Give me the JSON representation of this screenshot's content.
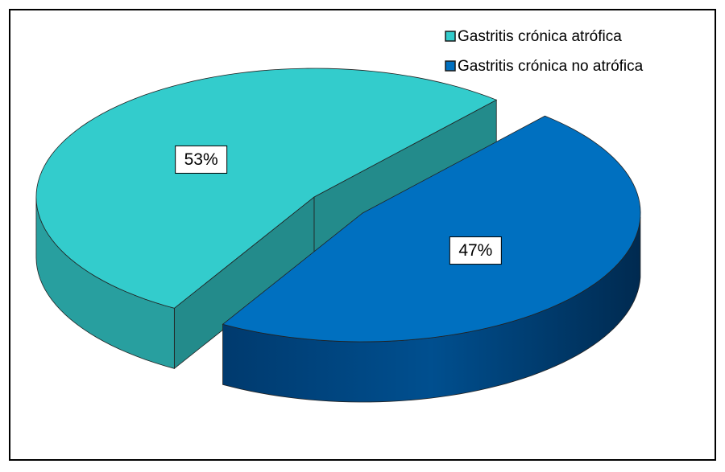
{
  "chart_data": {
    "type": "pie",
    "categories": [
      "Gastritis crónica atrófica",
      "Gastritis crónica no atrófica"
    ],
    "values": [
      53,
      47
    ],
    "value_labels": [
      "53%",
      "47%"
    ],
    "colors": [
      "#33CCCC",
      "#0070C0"
    ],
    "legend": "top-right"
  }
}
